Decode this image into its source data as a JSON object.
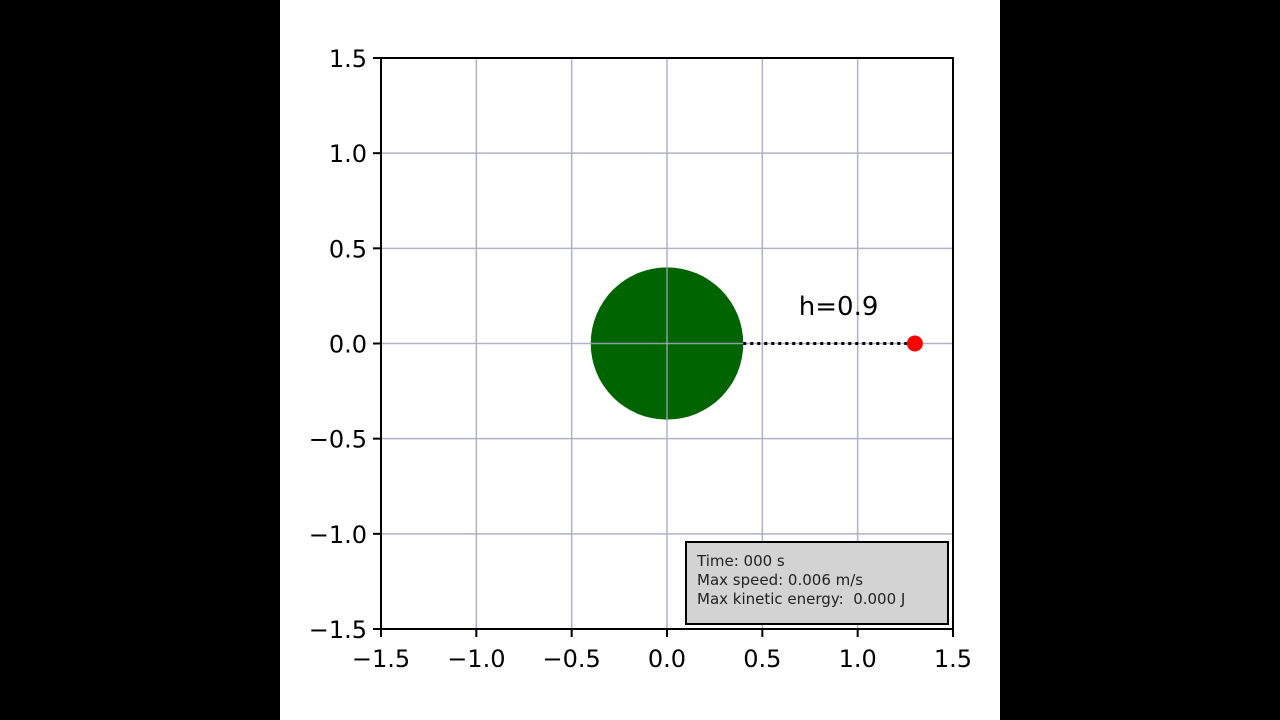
{
  "chart_data": {
    "type": "scatter",
    "title": "",
    "xlabel": "",
    "ylabel": "",
    "xlim": [
      -1.5,
      1.5
    ],
    "ylim": [
      -1.5,
      1.5
    ],
    "grid": true,
    "x_ticks": [
      -1.5,
      -1.0,
      -0.5,
      0.0,
      0.5,
      1.0,
      1.5
    ],
    "y_ticks": [
      -1.5,
      -1.0,
      -0.5,
      0.0,
      0.5,
      1.0,
      1.5
    ],
    "x_tick_labels": [
      "−1.5",
      "−1.0",
      "−0.5",
      "0.0",
      "0.5",
      "1.0",
      "1.5"
    ],
    "y_tick_labels": [
      "−1.5",
      "−1.0",
      "−0.5",
      "0.0",
      "0.5",
      "1.0",
      "1.5"
    ],
    "body": {
      "center": [
        0.0,
        0.0
      ],
      "radius": 0.4,
      "color": "#006400"
    },
    "particle": {
      "x": 1.3,
      "y": 0.0,
      "color": "#ff0000"
    },
    "distance_line": {
      "from": [
        0.4,
        0.0
      ],
      "to": [
        1.3,
        0.0
      ],
      "style": "dotted",
      "color": "#000000"
    },
    "annotation": {
      "text": "h=0.9",
      "x": 0.9,
      "y": 0.15
    },
    "grid_color": "#b0b0c8"
  },
  "info_box": {
    "lines": [
      "Time: 000 s",
      "Max speed: 0.006 m/s",
      "Max kinetic energy:  0.000 J"
    ]
  }
}
